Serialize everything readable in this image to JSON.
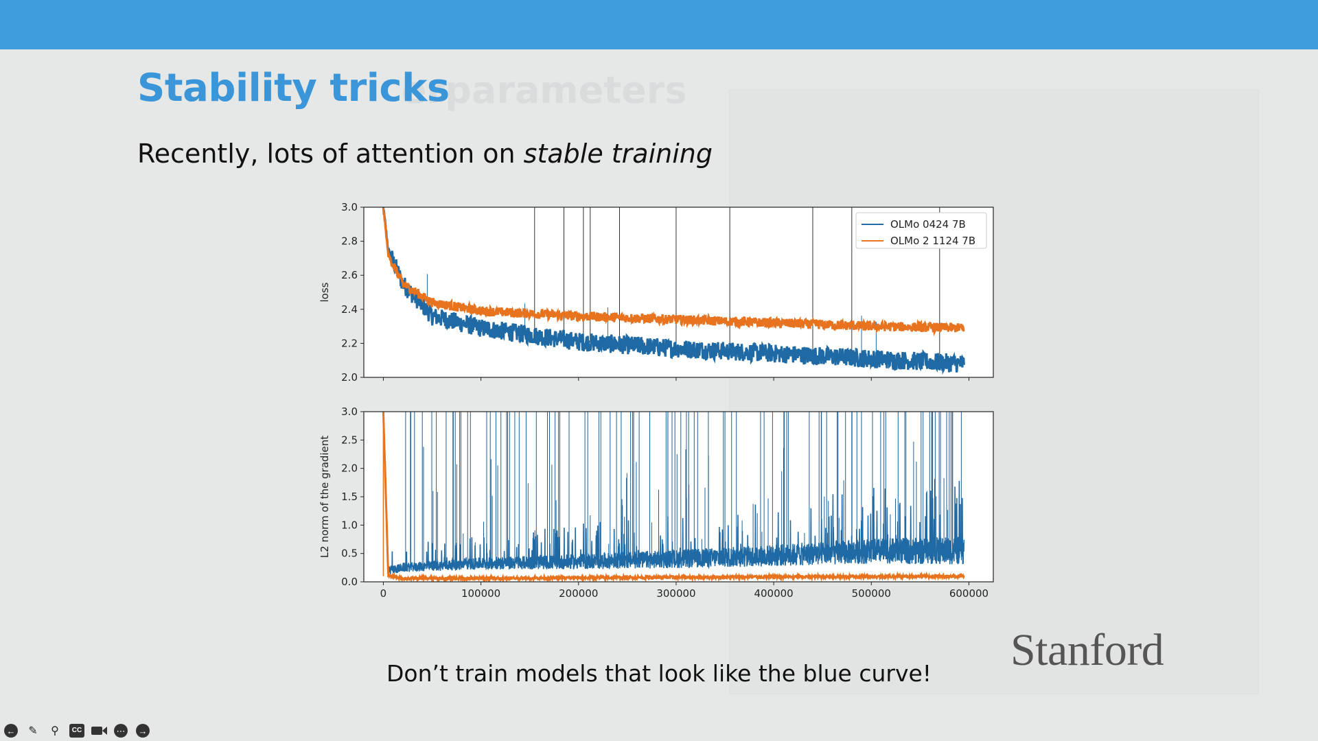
{
  "slide": {
    "title": "Stability tricks",
    "ghost_title": "erparameters",
    "subtitle_prefix": "Recently, lots of attention on ",
    "subtitle_emphasis": "stable training",
    "caption": "Don’t train models that look like the blue curve!",
    "logo": "Stanford"
  },
  "colors": {
    "topbar": "#3f9ddd",
    "title": "#3a96d8",
    "series_blue": "#1f6aa5",
    "series_orange": "#e8731f"
  },
  "toolbar": {
    "icons": [
      "back-icon",
      "pen-icon",
      "zoom-icon",
      "captions-icon",
      "camera-icon",
      "more-icon",
      "forward-icon"
    ],
    "cc_label": "CC"
  },
  "chart_data": [
    {
      "type": "line",
      "ylabel": "loss",
      "xlabel": "",
      "ylim": [
        2.0,
        3.0
      ],
      "yticks": [
        "2.0",
        "2.2",
        "2.4",
        "2.6",
        "2.8",
        "3.0"
      ],
      "xlim": [
        -20000,
        625000
      ],
      "legend": {
        "position": "top-right"
      },
      "series": [
        {
          "name": "OLMo 0424 7B",
          "color": "#1f6aa5",
          "x": [
            0,
            5000,
            20000,
            50000,
            100000,
            200000,
            300000,
            400000,
            500000,
            595000
          ],
          "y": [
            3.0,
            2.75,
            2.55,
            2.36,
            2.29,
            2.21,
            2.17,
            2.14,
            2.11,
            2.08
          ],
          "spikes_x": [
            155000,
            185000,
            205000,
            212000,
            242000,
            300000,
            355000,
            440000,
            480000,
            570000
          ]
        },
        {
          "name": "OLMo 2 1124 7B",
          "color": "#e8731f",
          "x": [
            0,
            5000,
            20000,
            50000,
            100000,
            200000,
            300000,
            400000,
            500000,
            595000
          ],
          "y": [
            3.0,
            2.72,
            2.55,
            2.44,
            2.39,
            2.36,
            2.34,
            2.32,
            2.3,
            2.29
          ]
        }
      ]
    },
    {
      "type": "line",
      "ylabel": "L2 norm of the gradient",
      "xlabel": "",
      "ylim": [
        0.0,
        3.0
      ],
      "yticks": [
        "0.0",
        "0.5",
        "1.0",
        "1.5",
        "2.0",
        "2.5",
        "3.0"
      ],
      "xlim": [
        -20000,
        625000
      ],
      "xticks": [
        "0",
        "100000",
        "200000",
        "300000",
        "400000",
        "500000",
        "600000"
      ],
      "series": [
        {
          "name": "OLMo 0424 7B",
          "color": "#1f6aa5",
          "x": [
            0,
            5000,
            20000,
            100000,
            200000,
            300000,
            400000,
            500000,
            595000
          ],
          "y": [
            3.0,
            0.2,
            0.25,
            0.3,
            0.3,
            0.32,
            0.35,
            0.4,
            0.38
          ]
        },
        {
          "name": "OLMo 2 1124 7B",
          "color": "#e8731f",
          "x": [
            0,
            5000,
            20000,
            100000,
            300000,
            595000
          ],
          "y": [
            3.0,
            0.1,
            0.05,
            0.05,
            0.07,
            0.09
          ]
        }
      ]
    }
  ]
}
